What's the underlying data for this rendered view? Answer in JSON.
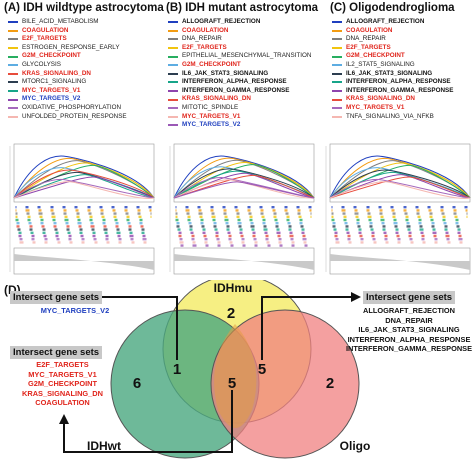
{
  "panels": [
    {
      "title": "(A) IDH wildtype astrocytoma",
      "legend": [
        {
          "label": "BILE_ACID_METABOLISM",
          "color": "#1f3fbf",
          "text_color": "#222222",
          "bold": false
        },
        {
          "label": "COAGULATION",
          "color": "#f39c12",
          "text_color": "#e0241b",
          "bold": true
        },
        {
          "label": "E2F_TARGETS",
          "color": "#7f7f7f",
          "text_color": "#e0241b",
          "bold": true
        },
        {
          "label": "ESTROGEN_RESPONSE_EARLY",
          "color": "#f1c40f",
          "text_color": "#222222",
          "bold": false
        },
        {
          "label": "G2M_CHECKPOINT",
          "color": "#27ae60",
          "text_color": "#e0241b",
          "bold": true
        },
        {
          "label": "GLYCOLYSIS",
          "color": "#5dade2",
          "text_color": "#222222",
          "bold": false
        },
        {
          "label": "KRAS_SIGNALING_DN",
          "color": "#e74c3c",
          "text_color": "#e0241b",
          "bold": true
        },
        {
          "label": "MTORC1_SIGNALING",
          "color": "#2c3e50",
          "text_color": "#222222",
          "bold": false
        },
        {
          "label": "MYC_TARGETS_V1",
          "color": "#17a589",
          "text_color": "#e0241b",
          "bold": true
        },
        {
          "label": "MYC_TARGETS_V2",
          "color": "#8e44ad",
          "text_color": "#1f3fbf",
          "bold": true
        },
        {
          "label": "OXIDATIVE_PHOSPHORYLATION",
          "color": "#a569bd",
          "text_color": "#222222",
          "bold": false
        },
        {
          "label": "UNFOLDED_PROTEIN_RESPONSE",
          "color": "#f5b7b1",
          "text_color": "#222222",
          "bold": false
        }
      ]
    },
    {
      "title": "(B) IDH mutant astrocytoma",
      "legend": [
        {
          "label": "ALLOGRAFT_REJECTION",
          "color": "#1f3fbf",
          "text_color": "#111111",
          "bold": true
        },
        {
          "label": "COAGULATION",
          "color": "#f39c12",
          "text_color": "#e0241b",
          "bold": true
        },
        {
          "label": "DNA_REPAIR",
          "color": "#7f7f7f",
          "text_color": "#111111",
          "bold": false
        },
        {
          "label": "E2F_TARGETS",
          "color": "#f1c40f",
          "text_color": "#e0241b",
          "bold": true
        },
        {
          "label": "EPITHELIAL_MESENCHYMAL_TRANSITION",
          "color": "#27ae60",
          "text_color": "#222222",
          "bold": false
        },
        {
          "label": "G2M_CHECKPOINT",
          "color": "#5dade2",
          "text_color": "#e0241b",
          "bold": true
        },
        {
          "label": "IL6_JAK_STAT3_SIGNALING",
          "color": "#2c3e50",
          "text_color": "#111111",
          "bold": true
        },
        {
          "label": "INTERFERON_ALPHA_RESPONSE",
          "color": "#17a589",
          "text_color": "#111111",
          "bold": true
        },
        {
          "label": "INTERFERON_GAMMA_RESPONSE",
          "color": "#8e44ad",
          "text_color": "#111111",
          "bold": true
        },
        {
          "label": "KRAS_SIGNALING_DN",
          "color": "#e74c3c",
          "text_color": "#e0241b",
          "bold": true
        },
        {
          "label": "MITOTIC_SPINDLE",
          "color": "#a569bd",
          "text_color": "#222222",
          "bold": false
        },
        {
          "label": "MYC_TARGETS_V1",
          "color": "#f5b7b1",
          "text_color": "#e0241b",
          "bold": true
        },
        {
          "label": "MYC_TARGETS_V2",
          "color": "#9b59b6",
          "text_color": "#1f3fbf",
          "bold": true
        }
      ]
    },
    {
      "title": "(C) Oligodendroglioma",
      "legend": [
        {
          "label": "ALLOGRAFT_REJECTION",
          "color": "#1f3fbf",
          "text_color": "#111111",
          "bold": true
        },
        {
          "label": "COAGULATION",
          "color": "#f39c12",
          "text_color": "#e0241b",
          "bold": true
        },
        {
          "label": "DNA_REPAIR",
          "color": "#7f7f7f",
          "text_color": "#111111",
          "bold": false
        },
        {
          "label": "E2F_TARGETS",
          "color": "#f1c40f",
          "text_color": "#e0241b",
          "bold": true
        },
        {
          "label": "G2M_CHECKPOINT",
          "color": "#27ae60",
          "text_color": "#e0241b",
          "bold": true
        },
        {
          "label": "IL2_STAT5_SIGNALING",
          "color": "#5dade2",
          "text_color": "#222222",
          "bold": false
        },
        {
          "label": "IL6_JAK_STAT3_SIGNALING",
          "color": "#2c3e50",
          "text_color": "#111111",
          "bold": true
        },
        {
          "label": "INTERFERON_ALPHA_RESPONSE",
          "color": "#17a589",
          "text_color": "#111111",
          "bold": true
        },
        {
          "label": "INTERFERON_GAMMA_RESPONSE",
          "color": "#8e44ad",
          "text_color": "#111111",
          "bold": true
        },
        {
          "label": "KRAS_SIGNALING_DN",
          "color": "#e74c3c",
          "text_color": "#e0241b",
          "bold": true
        },
        {
          "label": "MYC_TARGETS_V1",
          "color": "#a569bd",
          "text_color": "#e0241b",
          "bold": true
        },
        {
          "label": "TNFA_SIGNALING_VIA_NFKB",
          "color": "#f5b7b1",
          "text_color": "#222222",
          "bold": false
        }
      ]
    }
  ],
  "venn": {
    "panel_label": "(D)",
    "sets": {
      "idhmu": {
        "label": "IDHmu",
        "color": "#f6ee7c"
      },
      "idhwt": {
        "label": "IDHwt",
        "color": "#4aa87f"
      },
      "oligo": {
        "label": "Oligo",
        "color": "#f08080"
      }
    },
    "counts": {
      "idhmu_only": "2",
      "idhwt_only": "6",
      "oligo_only": "2",
      "idhwt_idhmu": "1",
      "idhmu_oligo": "5",
      "all_three": "5"
    },
    "callouts": {
      "top_left": {
        "title": "Intersect gene sets",
        "genes": [
          "MYC_TARGETS_V2"
        ],
        "gene_color": "#1f3fbf"
      },
      "top_right": {
        "title": "Intersect gene sets",
        "genes": [
          "ALLOGRAFT_REJECTION",
          "DNA_REPAIR",
          "IL6_JAK_STAT3_SIGNALING",
          "INTERFERON_ALPHA_RESPONSE",
          "INTERFERON_GAMMA_RESPONSE"
        ],
        "gene_color": "#111111"
      },
      "bottom_left": {
        "title": "Intersect gene sets",
        "genes": [
          "E2F_TARGETS",
          "MYC_TARGETS_V1",
          "G2M_CHECKPOINT",
          "KRAS_SIGNALING_DN",
          "COAGULATION"
        ],
        "gene_color": "#e0241b"
      }
    }
  }
}
